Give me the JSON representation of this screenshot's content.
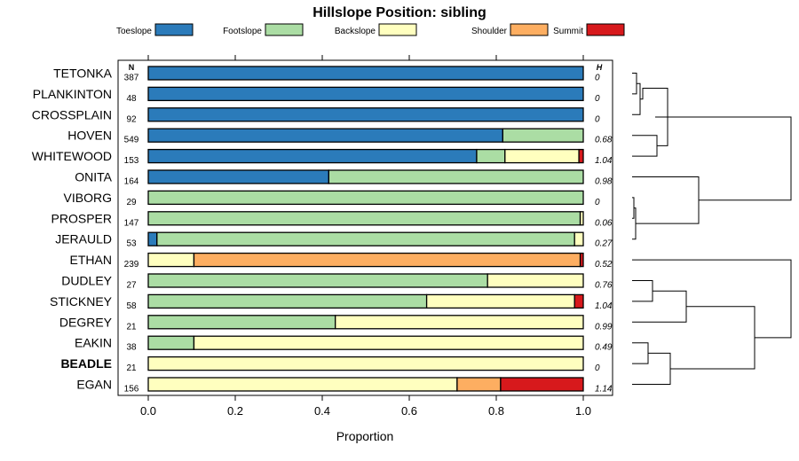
{
  "chart_data": {
    "type": "bar",
    "orientation": "horizontal",
    "stacked": true,
    "title": "Hillslope Position: sibling",
    "xlabel": "Proportion",
    "ylabel": "",
    "xlim": [
      0,
      1
    ],
    "x_ticks": [
      "0.0",
      "0.2",
      "0.4",
      "0.6",
      "0.8",
      "1.0"
    ],
    "n_header": "N",
    "h_header": "H",
    "legend_position": "top",
    "legend": [
      {
        "name": "Toeslope",
        "color": "#2b7bba"
      },
      {
        "name": "Footslope",
        "color": "#abdda4"
      },
      {
        "name": "Backslope",
        "color": "#ffffbf"
      },
      {
        "name": "Shoulder",
        "color": "#fdae61"
      },
      {
        "name": "Summit",
        "color": "#d7191c"
      }
    ],
    "categories": [
      "TETONKA",
      "PLANKINTON",
      "CROSSPLAIN",
      "HOVEN",
      "WHITEWOOD",
      "ONITA",
      "VIBORG",
      "PROSPER",
      "JERAULD",
      "ETHAN",
      "DUDLEY",
      "STICKNEY",
      "DEGREY",
      "EAKIN",
      "BEADLE",
      "EGAN"
    ],
    "bold_category": "BEADLE",
    "n": [
      "387",
      "48",
      "92",
      "549",
      "153",
      "164",
      "29",
      "147",
      "53",
      "239",
      "27",
      "58",
      "21",
      "38",
      "21",
      "156"
    ],
    "h": [
      "0",
      "0",
      "0",
      "0.68",
      "1.04",
      "0.98",
      "0",
      "0.06",
      "0.27",
      "0.52",
      "0.76",
      "1.04",
      "0.99",
      "0.49",
      "0",
      "1.14"
    ],
    "series": [
      {
        "name": "Toeslope",
        "values": [
          1.0,
          1.0,
          1.0,
          0.815,
          0.755,
          0.415,
          0.0,
          0.0,
          0.02,
          0.0,
          0.0,
          0.0,
          0.0,
          0.0,
          0.0,
          0.0
        ]
      },
      {
        "name": "Footslope",
        "values": [
          0.0,
          0.0,
          0.0,
          0.185,
          0.065,
          0.585,
          1.0,
          0.993,
          0.96,
          0.0,
          0.78,
          0.64,
          0.43,
          0.105,
          0.0,
          0.0
        ]
      },
      {
        "name": "Backslope",
        "values": [
          0.0,
          0.0,
          0.0,
          0.0,
          0.17,
          0.0,
          0.0,
          0.007,
          0.02,
          0.105,
          0.22,
          0.34,
          0.57,
          0.895,
          1.0,
          0.71
        ]
      },
      {
        "name": "Shoulder",
        "values": [
          0.0,
          0.0,
          0.0,
          0.0,
          0.0,
          0.0,
          0.0,
          0.0,
          0.0,
          0.888,
          0.0,
          0.0,
          0.0,
          0.0,
          0.0,
          0.1
        ]
      },
      {
        "name": "Summit",
        "values": [
          0.0,
          0.0,
          0.0,
          0.0,
          0.01,
          0.0,
          0.0,
          0.0,
          0.0,
          0.007,
          0.0,
          0.02,
          0.0,
          0.0,
          0.0,
          0.19
        ]
      }
    ]
  }
}
